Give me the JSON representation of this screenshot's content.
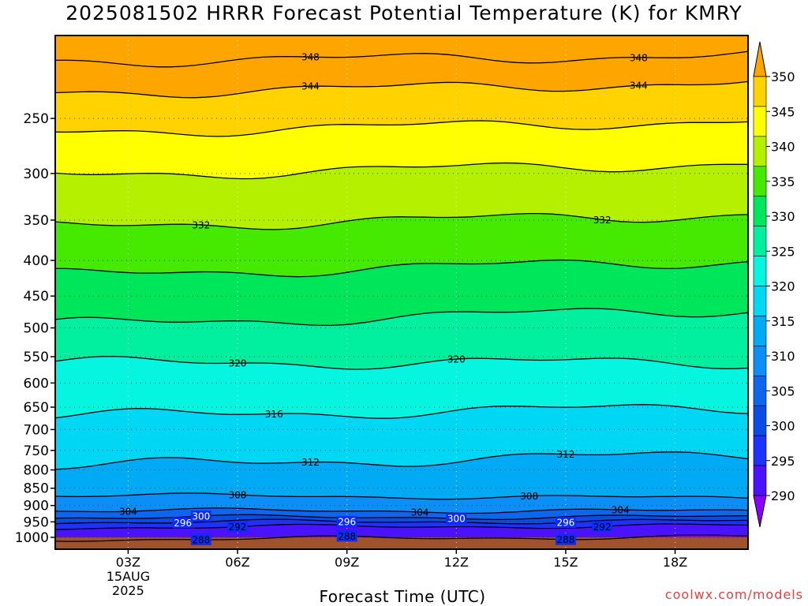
{
  "chart_data": {
    "type": "area",
    "title": "2025081502 HRRR Forecast Potential Temperature (K) for KMRY",
    "xlabel": "Forecast Time (UTC)",
    "ylabel": "",
    "x_ticks": [
      "03Z",
      "06Z",
      "09Z",
      "12Z",
      "15Z",
      "18Z"
    ],
    "x_date_lines": [
      "15AUG",
      "2025"
    ],
    "y_ticks": [
      "250",
      "300",
      "350",
      "400",
      "450",
      "500",
      "550",
      "600",
      "650",
      "700",
      "750",
      "800",
      "850",
      "900",
      "950",
      "1000"
    ],
    "y_axis": "pressure (log scale, inverted)",
    "ylim": [
      1040,
      190
    ],
    "xlim": [
      1.0,
      20.0
    ],
    "colorbar": {
      "ticks": [
        "290",
        "295",
        "300",
        "305",
        "310",
        "315",
        "320",
        "325",
        "330",
        "335",
        "340",
        "345",
        "350"
      ],
      "colors": [
        "#8b00ff",
        "#4b12ff",
        "#1e32ff",
        "#0a4ce6",
        "#0f66ee",
        "#0b8ef5",
        "#00aaf5",
        "#00d7f5",
        "#05f5e1",
        "#00f0a0",
        "#00e65a",
        "#46ea00",
        "#b4f000",
        "#ffff00",
        "#ffd200",
        "#ffa500"
      ]
    },
    "contours": [
      {
        "theta": 288,
        "label": "288",
        "p_left": 1007,
        "p_right": 998,
        "labels_at": [
          5,
          9,
          15
        ]
      },
      {
        "theta": 292,
        "label": "292",
        "p_left": 968,
        "p_right": 962,
        "labels_at": [
          6,
          16
        ]
      },
      {
        "theta": 296,
        "label": "296",
        "p_left": 951,
        "p_right": 948,
        "labels_at": [
          4.5,
          9,
          15
        ]
      },
      {
        "theta": 300,
        "label": "300",
        "p_left": 936,
        "p_right": 935,
        "labels_at": [
          5,
          12
        ]
      },
      {
        "theta": 304,
        "label": "304",
        "p_left": 915,
        "p_right": 917,
        "labels_at": [
          3,
          11,
          16.5
        ]
      },
      {
        "theta": 308,
        "label": "308",
        "p_left": 870,
        "p_right": 878,
        "labels_at": [
          6,
          14
        ]
      },
      {
        "theta": 312,
        "label": "312",
        "p_left": 790,
        "p_right": 760,
        "labels_at": [
          8,
          15
        ]
      },
      {
        "theta": 316,
        "label": "316",
        "p_left": 670,
        "p_right": 650,
        "labels_at": [
          7
        ]
      },
      {
        "theta": 320,
        "label": "320",
        "p_left": 562,
        "p_right": 560,
        "labels_at": [
          6,
          12
        ]
      },
      {
        "theta": 324,
        "label": "",
        "p_left": 495,
        "p_right": 470,
        "labels_at": []
      },
      {
        "theta": 328,
        "label": "",
        "p_left": 420,
        "p_right": 400,
        "labels_at": []
      },
      {
        "theta": 332,
        "label": "332",
        "p_left": 358,
        "p_right": 343,
        "labels_at": [
          5,
          16
        ]
      },
      {
        "theta": 336,
        "label": "",
        "p_left": 302,
        "p_right": 290,
        "labels_at": []
      },
      {
        "theta": 340,
        "label": "",
        "p_left": 262,
        "p_right": 252,
        "labels_at": []
      },
      {
        "theta": 344,
        "label": "344",
        "p_left": 230,
        "p_right": 222,
        "labels_at": [
          8,
          17
        ]
      },
      {
        "theta": 348,
        "label": "348",
        "p_left": 207,
        "p_right": 203,
        "labels_at": [
          8,
          17
        ]
      }
    ],
    "ground_pressure": 1000,
    "grid": true
  },
  "credit": "coolwx.com/models"
}
